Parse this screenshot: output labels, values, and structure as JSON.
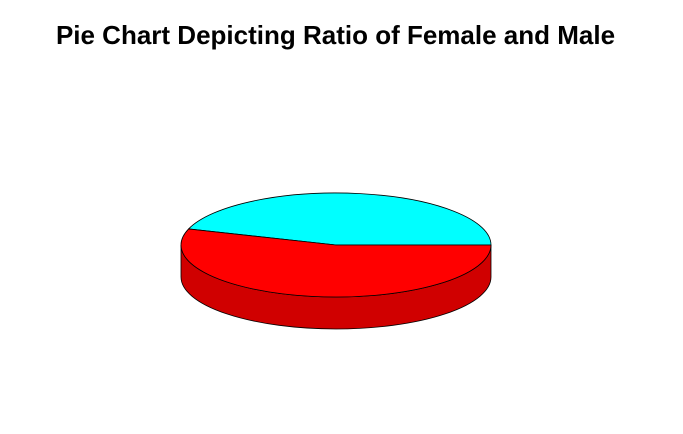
{
  "chart_data": {
    "type": "pie",
    "title": "Pie Chart Depicting Ratio of Female and Male",
    "three_d": true,
    "labels_shown": false,
    "slices": [
      {
        "name": "",
        "value": 0.45,
        "color": "#00FFFF",
        "side_color": "#00D0D0"
      },
      {
        "name": "",
        "value": 0.55,
        "color": "#FF0000",
        "side_color": "#D00000"
      }
    ]
  }
}
